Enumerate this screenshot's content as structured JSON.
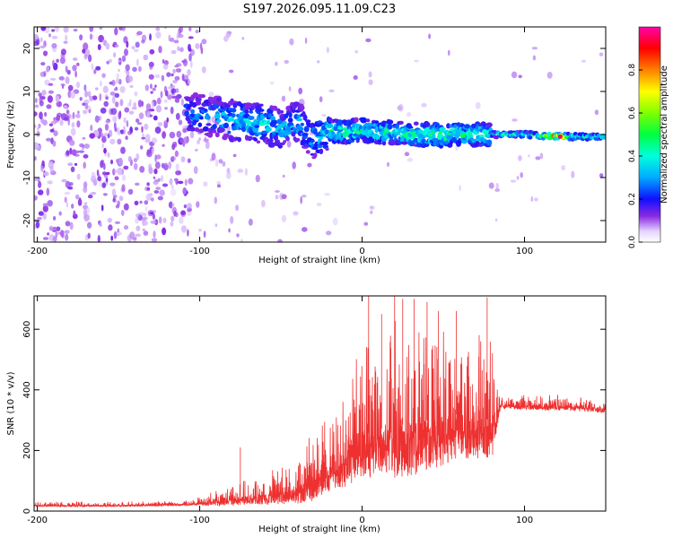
{
  "title": "S197.2026.095.11.09.C23",
  "chart_data": [
    {
      "type": "heatmap",
      "xlabel": "Height of straight line (km)",
      "ylabel": "Frequency (Hz)",
      "xlim": [
        -202,
        150
      ],
      "ylim": [
        -25,
        25
      ],
      "xticks": [
        -200,
        -100,
        0,
        100
      ],
      "yticks": [
        -20,
        -10,
        0,
        10,
        20
      ],
      "colorbar": {
        "label": "Normalized spectral amplitude",
        "range": [
          0,
          1
        ],
        "ticks": [
          "0.0",
          "0.2",
          "0.4",
          "0.6",
          "0.8"
        ],
        "tick_values": [
          0,
          0.2,
          0.4,
          0.6,
          0.8
        ]
      },
      "ridge": {
        "x": [
          -105,
          -90,
          -75,
          -60,
          -50,
          -40,
          -30,
          -20,
          -10,
          0,
          10,
          20,
          30,
          40,
          50,
          60,
          70,
          80,
          90,
          100,
          110,
          120,
          130,
          140,
          150
        ],
        "freq": [
          5,
          4,
          3,
          2.5,
          1,
          3,
          -1,
          1,
          0.5,
          1,
          0.5,
          0.5,
          0,
          0,
          0,
          0,
          0,
          0,
          0,
          0,
          -0.3,
          -0.5,
          -0.5,
          -0.5,
          -0.5
        ],
        "peak_amplitude": [
          0.3,
          0.35,
          0.4,
          0.4,
          0.35,
          0.4,
          0.35,
          0.45,
          0.5,
          0.45,
          0.5,
          0.45,
          0.5,
          0.55,
          0.55,
          0.5,
          0.5,
          0.45,
          0.45,
          0.5,
          0.55,
          0.95,
          0.5,
          0.45,
          0.45
        ]
      }
    },
    {
      "type": "line",
      "xlabel": "Height of straight line (km)",
      "ylabel": "SNR (10 * v/v)",
      "xlim": [
        -202,
        150
      ],
      "ylim": [
        0,
        710
      ],
      "xticks": [
        -200,
        -100,
        0,
        100
      ],
      "yticks": [
        0,
        200,
        400,
        600
      ],
      "color": "#ee3030",
      "envelope": {
        "x": [
          -202,
          -160,
          -120,
          -105,
          -90,
          -80,
          -70,
          -60,
          -50,
          -40,
          -30,
          -20,
          -10,
          0,
          10,
          20,
          30,
          40,
          50,
          60,
          70,
          80,
          85,
          90,
          100,
          120,
          140,
          150
        ],
        "mean": [
          20,
          20,
          22,
          25,
          35,
          45,
          50,
          55,
          65,
          80,
          110,
          160,
          200,
          250,
          270,
          280,
          290,
          300,
          310,
          320,
          310,
          300,
          350,
          355,
          350,
          350,
          345,
          340
        ],
        "spread": [
          8,
          8,
          8,
          10,
          25,
          40,
          40,
          50,
          60,
          80,
          110,
          140,
          170,
          220,
          240,
          250,
          250,
          240,
          230,
          220,
          200,
          190,
          25,
          25,
          25,
          25,
          25,
          25
        ]
      },
      "spikes": [
        {
          "x": 4,
          "y": 710
        },
        {
          "x": 12,
          "y": 650
        },
        {
          "x": 20,
          "y": 710
        },
        {
          "x": 25,
          "y": 700
        },
        {
          "x": 32,
          "y": 700
        },
        {
          "x": 40,
          "y": 690
        },
        {
          "x": 47,
          "y": 660
        },
        {
          "x": 58,
          "y": 660
        },
        {
          "x": 77,
          "y": 705
        },
        {
          "x": -75,
          "y": 210
        }
      ]
    }
  ]
}
